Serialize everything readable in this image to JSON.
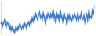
{
  "chart_data": {
    "type": "line",
    "categories": [
      null,
      null,
      null,
      null,
      null,
      null,
      null,
      null,
      null,
      null,
      null,
      null,
      null,
      null,
      null,
      null,
      null,
      null,
      null,
      null,
      null,
      null,
      null,
      null,
      null,
      null,
      null,
      null,
      null,
      null,
      null,
      null,
      null,
      null,
      null,
      null,
      null,
      null,
      null,
      null,
      null,
      null,
      null,
      null,
      null,
      null,
      null,
      null,
      null,
      null,
      null,
      null,
      null,
      null,
      null,
      null,
      null,
      null,
      null,
      null,
      null,
      null,
      null,
      null,
      null,
      null,
      null,
      null,
      null,
      null,
      null,
      null,
      null,
      null,
      null,
      null,
      null,
      null,
      null,
      null,
      null,
      null,
      null,
      null,
      null,
      null,
      null,
      null,
      null,
      null,
      null,
      null,
      null,
      null,
      null,
      null,
      null,
      null,
      null,
      null
    ],
    "values": [
      45,
      52,
      40,
      48,
      55,
      43,
      38,
      50,
      46,
      35,
      42,
      30,
      38,
      28,
      33,
      25,
      36,
      30,
      40,
      34,
      44,
      38,
      31,
      42,
      36,
      47,
      40,
      33,
      45,
      50,
      42,
      55,
      48,
      60,
      52,
      66,
      58,
      70,
      62,
      55,
      68,
      74,
      60,
      65,
      57,
      72,
      63,
      50,
      67,
      59,
      71,
      64,
      56,
      69,
      62,
      75,
      58,
      66,
      53,
      70,
      61,
      67,
      55,
      73,
      60,
      64,
      52,
      68,
      58,
      62,
      49,
      66,
      57,
      71,
      60,
      54,
      65,
      58,
      70,
      63,
      56,
      68,
      52,
      64,
      59,
      72,
      61,
      57,
      66,
      50,
      62,
      69,
      55,
      73,
      58,
      64,
      60,
      78,
      70,
      92
    ],
    "color": "#3a7bd5",
    "ylim": [
      20,
      100
    ],
    "grid": false,
    "tick_labels": false
  }
}
